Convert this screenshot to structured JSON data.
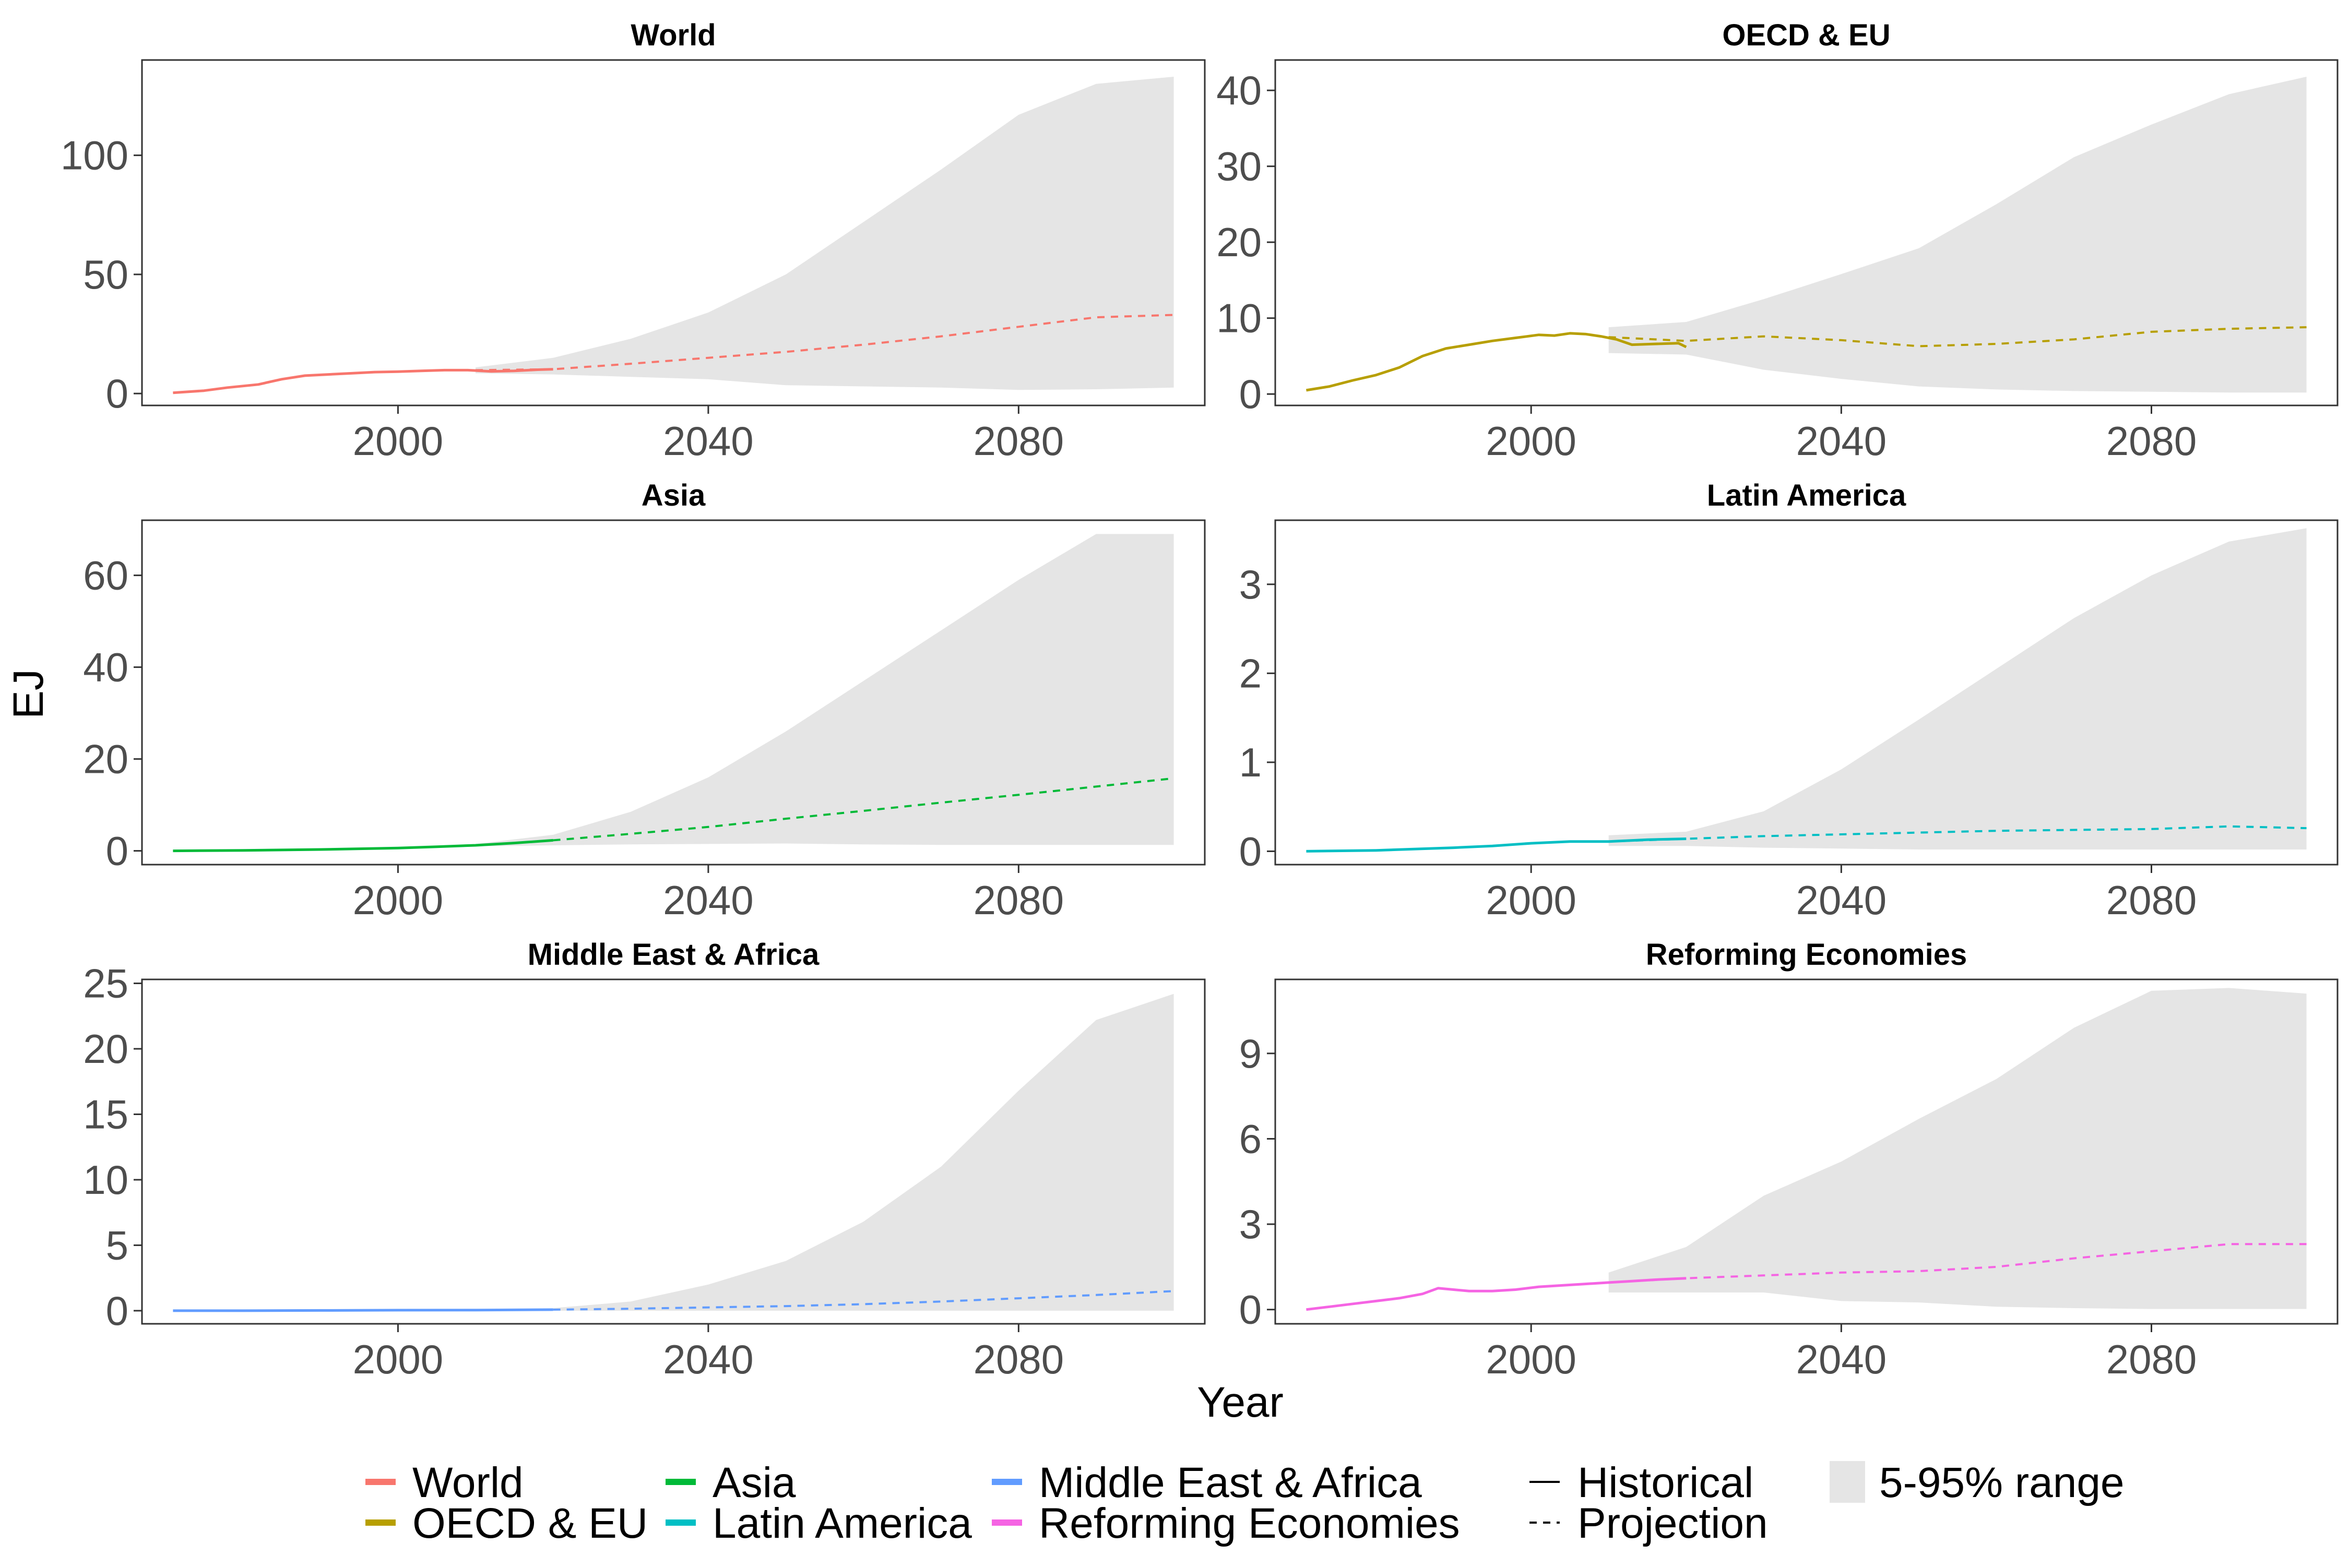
{
  "chart_data": {
    "type": "area",
    "layout": "facet-grid-3x2",
    "xlabel": "Year",
    "ylabel": "EJ",
    "x_ticks": [
      2000,
      2040,
      2080
    ],
    "xlim": [
      1967,
      2104
    ],
    "panels": [
      {
        "title": "World",
        "color": "#F8766D",
        "ylim": [
          -5,
          140
        ],
        "y_ticks": [
          0,
          50,
          100
        ],
        "historical": {
          "x": [
            1971,
            1975,
            1978,
            1982,
            1985,
            1988,
            1991,
            1994,
            1997,
            2000,
            2003,
            2006,
            2009,
            2012,
            2015,
            2018,
            2020
          ],
          "y": [
            0.3,
            1.2,
            2.5,
            3.8,
            6,
            7.5,
            8,
            8.5,
            9,
            9.2,
            9.5,
            9.8,
            9.8,
            9.3,
            9.5,
            10,
            10.2
          ]
        },
        "projection": {
          "x": [
            2010,
            2020,
            2030,
            2040,
            2050,
            2060,
            2070,
            2080,
            2090,
            2100
          ],
          "y": [
            9.8,
            10.2,
            12.5,
            15,
            17.5,
            20.5,
            24,
            28,
            32,
            33
          ]
        },
        "range": {
          "x": [
            2010,
            2020,
            2030,
            2040,
            2050,
            2060,
            2070,
            2080,
            2090,
            2100
          ],
          "upper": [
            11,
            15,
            23,
            34,
            50,
            72,
            94,
            117,
            130,
            133
          ],
          "lower": [
            8.5,
            8,
            7,
            6,
            3.5,
            3,
            2.5,
            1.5,
            1.8,
            2.5
          ]
        }
      },
      {
        "title": "OECD & EU",
        "color": "#B79F00",
        "ylim": [
          -1.5,
          44
        ],
        "y_ticks": [
          0,
          10,
          20,
          30,
          40
        ],
        "historical": {
          "x": [
            1971,
            1974,
            1977,
            1980,
            1983,
            1986,
            1989,
            1992,
            1995,
            1998,
            2001,
            2003,
            2005,
            2007,
            2009,
            2011,
            2013,
            2016,
            2019,
            2020
          ],
          "y": [
            0.5,
            1,
            1.8,
            2.5,
            3.5,
            5,
            6,
            6.5,
            7,
            7.4,
            7.8,
            7.7,
            8,
            7.9,
            7.6,
            7.2,
            6.5,
            6.6,
            6.7,
            6.2
          ]
        },
        "projection": {
          "x": [
            2010,
            2020,
            2030,
            2040,
            2050,
            2060,
            2070,
            2080,
            2090,
            2100
          ],
          "y": [
            7.5,
            7,
            7.6,
            7.1,
            6.3,
            6.6,
            7.2,
            8.2,
            8.6,
            8.8
          ]
        },
        "range": {
          "x": [
            2010,
            2020,
            2030,
            2040,
            2050,
            2060,
            2070,
            2080,
            2090,
            2100
          ],
          "upper": [
            8.8,
            9.5,
            12.5,
            15.8,
            19.2,
            25,
            31.2,
            35.5,
            39.5,
            41.8
          ],
          "lower": [
            5.4,
            5.2,
            3.2,
            2,
            1,
            0.6,
            0.4,
            0.3,
            0.2,
            0.2
          ]
        }
      },
      {
        "title": "Asia",
        "color": "#00BA38",
        "ylim": [
          -3,
          72
        ],
        "y_ticks": [
          0,
          20,
          40,
          60
        ],
        "historical": {
          "x": [
            1971,
            1980,
            1990,
            2000,
            2005,
            2010,
            2015,
            2020
          ],
          "y": [
            0,
            0.1,
            0.3,
            0.6,
            0.9,
            1.2,
            1.7,
            2.3
          ]
        },
        "projection": {
          "x": [
            2020,
            2030,
            2040,
            2050,
            2060,
            2070,
            2080,
            2090,
            2100
          ],
          "y": [
            2.3,
            3.7,
            5.2,
            7,
            8.7,
            10.5,
            12.2,
            14,
            15.8
          ]
        },
        "range": {
          "x": [
            2010,
            2020,
            2030,
            2040,
            2050,
            2060,
            2070,
            2080,
            2090,
            2100
          ],
          "upper": [
            1.5,
            3.5,
            8.5,
            16,
            26,
            37,
            48,
            59,
            69,
            69
          ],
          "lower": [
            1,
            1.2,
            1.4,
            1.5,
            1.6,
            1.4,
            1.3,
            1.3,
            1.3,
            1.3
          ]
        }
      },
      {
        "title": "Latin America",
        "color": "#00BFC4",
        "ylim": [
          -0.15,
          3.72
        ],
        "y_ticks": [
          0,
          1,
          2,
          3
        ],
        "historical": {
          "x": [
            1971,
            1980,
            1990,
            1995,
            2000,
            2005,
            2010,
            2015,
            2020
          ],
          "y": [
            0,
            0.01,
            0.04,
            0.06,
            0.09,
            0.11,
            0.11,
            0.13,
            0.14
          ]
        },
        "projection": {
          "x": [
            2010,
            2020,
            2030,
            2040,
            2050,
            2060,
            2070,
            2080,
            2090,
            2100
          ],
          "y": [
            0.11,
            0.14,
            0.17,
            0.19,
            0.21,
            0.23,
            0.24,
            0.25,
            0.28,
            0.26
          ]
        },
        "range": {
          "x": [
            2010,
            2020,
            2030,
            2040,
            2050,
            2060,
            2070,
            2080,
            2090,
            2100
          ],
          "upper": [
            0.18,
            0.22,
            0.45,
            0.92,
            1.48,
            2.05,
            2.62,
            3.1,
            3.48,
            3.63
          ],
          "lower": [
            0.06,
            0.06,
            0.04,
            0.03,
            0.02,
            0.02,
            0.02,
            0.02,
            0.02,
            0.02
          ]
        }
      },
      {
        "title": "Middle East & Africa",
        "color": "#619CFF",
        "ylim": [
          -1,
          25.3
        ],
        "y_ticks": [
          0,
          5,
          10,
          15,
          20,
          25
        ],
        "historical": {
          "x": [
            1971,
            1980,
            1990,
            2000,
            2010,
            2020
          ],
          "y": [
            0,
            0,
            0.02,
            0.04,
            0.05,
            0.08
          ]
        },
        "projection": {
          "x": [
            2020,
            2030,
            2040,
            2050,
            2060,
            2070,
            2080,
            2090,
            2100
          ],
          "y": [
            0.08,
            0.15,
            0.25,
            0.35,
            0.5,
            0.7,
            0.95,
            1.2,
            1.5
          ]
        },
        "range": {
          "x": [
            2020,
            2030,
            2040,
            2050,
            2060,
            2070,
            2080,
            2090,
            2100
          ],
          "upper": [
            0.2,
            0.7,
            2,
            3.8,
            6.8,
            11,
            16.8,
            22.2,
            24.2
          ],
          "lower": [
            0,
            0,
            0,
            0,
            0,
            0,
            0,
            0,
            0
          ]
        }
      },
      {
        "title": "Reforming Economies",
        "color": "#F564E3",
        "ylim": [
          -0.5,
          11.6
        ],
        "y_ticks": [
          0,
          3,
          6,
          9
        ],
        "historical": {
          "x": [
            1971,
            1974,
            1977,
            1980,
            1983,
            1986,
            1988,
            1990,
            1992,
            1995,
            1998,
            2001,
            2004,
            2007,
            2010,
            2013,
            2016,
            2020
          ],
          "y": [
            0,
            0.1,
            0.2,
            0.3,
            0.4,
            0.55,
            0.75,
            0.7,
            0.65,
            0.65,
            0.7,
            0.8,
            0.85,
            0.9,
            0.95,
            1,
            1.05,
            1.1
          ]
        },
        "projection": {
          "x": [
            2010,
            2020,
            2030,
            2040,
            2050,
            2060,
            2070,
            2080,
            2090,
            2100
          ],
          "y": [
            0.95,
            1.1,
            1.2,
            1.3,
            1.35,
            1.5,
            1.8,
            2.05,
            2.3,
            2.3
          ]
        },
        "range": {
          "x": [
            2010,
            2020,
            2030,
            2040,
            2050,
            2060,
            2070,
            2080,
            2090,
            2100
          ],
          "upper": [
            1.3,
            2.2,
            4,
            5.2,
            6.7,
            8.1,
            9.9,
            11.2,
            11.3,
            11.1
          ],
          "lower": [
            0.6,
            0.6,
            0.6,
            0.3,
            0.25,
            0.1,
            0.05,
            0.02,
            0.02,
            0.02
          ]
        }
      }
    ],
    "legend": {
      "placement": "bottom",
      "region_entries": [
        "World",
        "OECD & EU",
        "Asia",
        "Latin America",
        "Middle East & Africa",
        "Reforming Economies"
      ],
      "line_entries": [
        "Historical",
        "Projection"
      ],
      "range_entry": "5-95% range"
    },
    "range_fill_color": "#E5E5E5",
    "grid": false
  }
}
